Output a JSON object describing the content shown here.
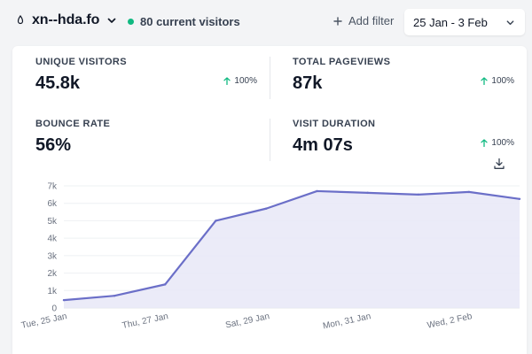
{
  "header": {
    "site_name": "xn--hda.fo",
    "current_visitors": "80 current visitors",
    "add_filter": "Add filter",
    "date_range": "25 Jan - 3 Feb"
  },
  "stats": [
    {
      "label": "UNIQUE VISITORS",
      "value": "45.8k",
      "change": "100%"
    },
    {
      "label": "TOTAL PAGEVIEWS",
      "value": "87k",
      "change": "100%"
    },
    {
      "label": "BOUNCE RATE",
      "value": "56%",
      "change": ""
    },
    {
      "label": "VISIT DURATION",
      "value": "4m 07s",
      "change": "100%"
    }
  ],
  "colors": {
    "accent": "#6366f1",
    "line": "#6b6fc8",
    "fill": "#e8e8f7",
    "positive": "#10b981"
  },
  "icons": {
    "favicon": "favicon-icon",
    "chevron": "chevron-down-icon",
    "plus": "plus-icon",
    "arrow": "arrow-up-icon",
    "download": "download-icon"
  },
  "chart_data": {
    "type": "area",
    "x": [
      "25 Jan",
      "26 Jan",
      "27 Jan",
      "28 Jan",
      "29 Jan",
      "30 Jan",
      "31 Jan",
      "1 Feb",
      "2 Feb",
      "3 Feb"
    ],
    "x_tick_labels": [
      "Tue, 25 Jan",
      "Thu, 27 Jan",
      "Sat, 29 Jan",
      "Mon, 31 Jan",
      "Wed, 2 Feb"
    ],
    "y_tick_labels": [
      "0",
      "1k",
      "2k",
      "3k",
      "4k",
      "5k",
      "6k",
      "7k"
    ],
    "series": [
      {
        "values": [
          450,
          700,
          1350,
          5000,
          5700,
          6700,
          6600,
          6500,
          6650,
          6250
        ]
      }
    ],
    "ylim": [
      0,
      7000
    ],
    "grid": true
  }
}
